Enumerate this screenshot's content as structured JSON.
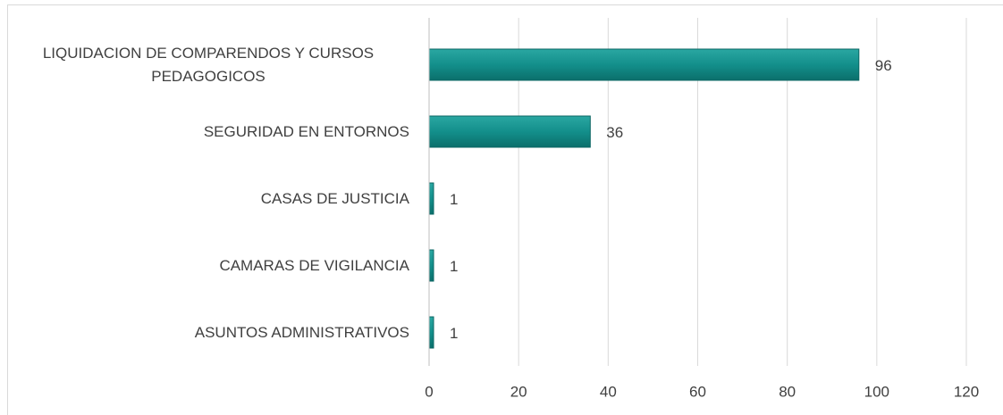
{
  "chart_data": {
    "type": "bar",
    "orientation": "horizontal",
    "categories": [
      "LIQUIDACION DE COMPARENDOS Y CURSOS PEDAGOGICOS",
      "SEGURIDAD EN ENTORNOS",
      "CASAS DE JUSTICIA",
      "CAMARAS DE VIGILANCIA",
      "ASUNTOS ADMINISTRATIVOS"
    ],
    "values": [
      96,
      36,
      1,
      1,
      1
    ],
    "color": "#138f8b",
    "xlim": [
      0,
      120
    ],
    "xticks": [
      0,
      20,
      40,
      60,
      80,
      100,
      120
    ],
    "grid": true
  }
}
